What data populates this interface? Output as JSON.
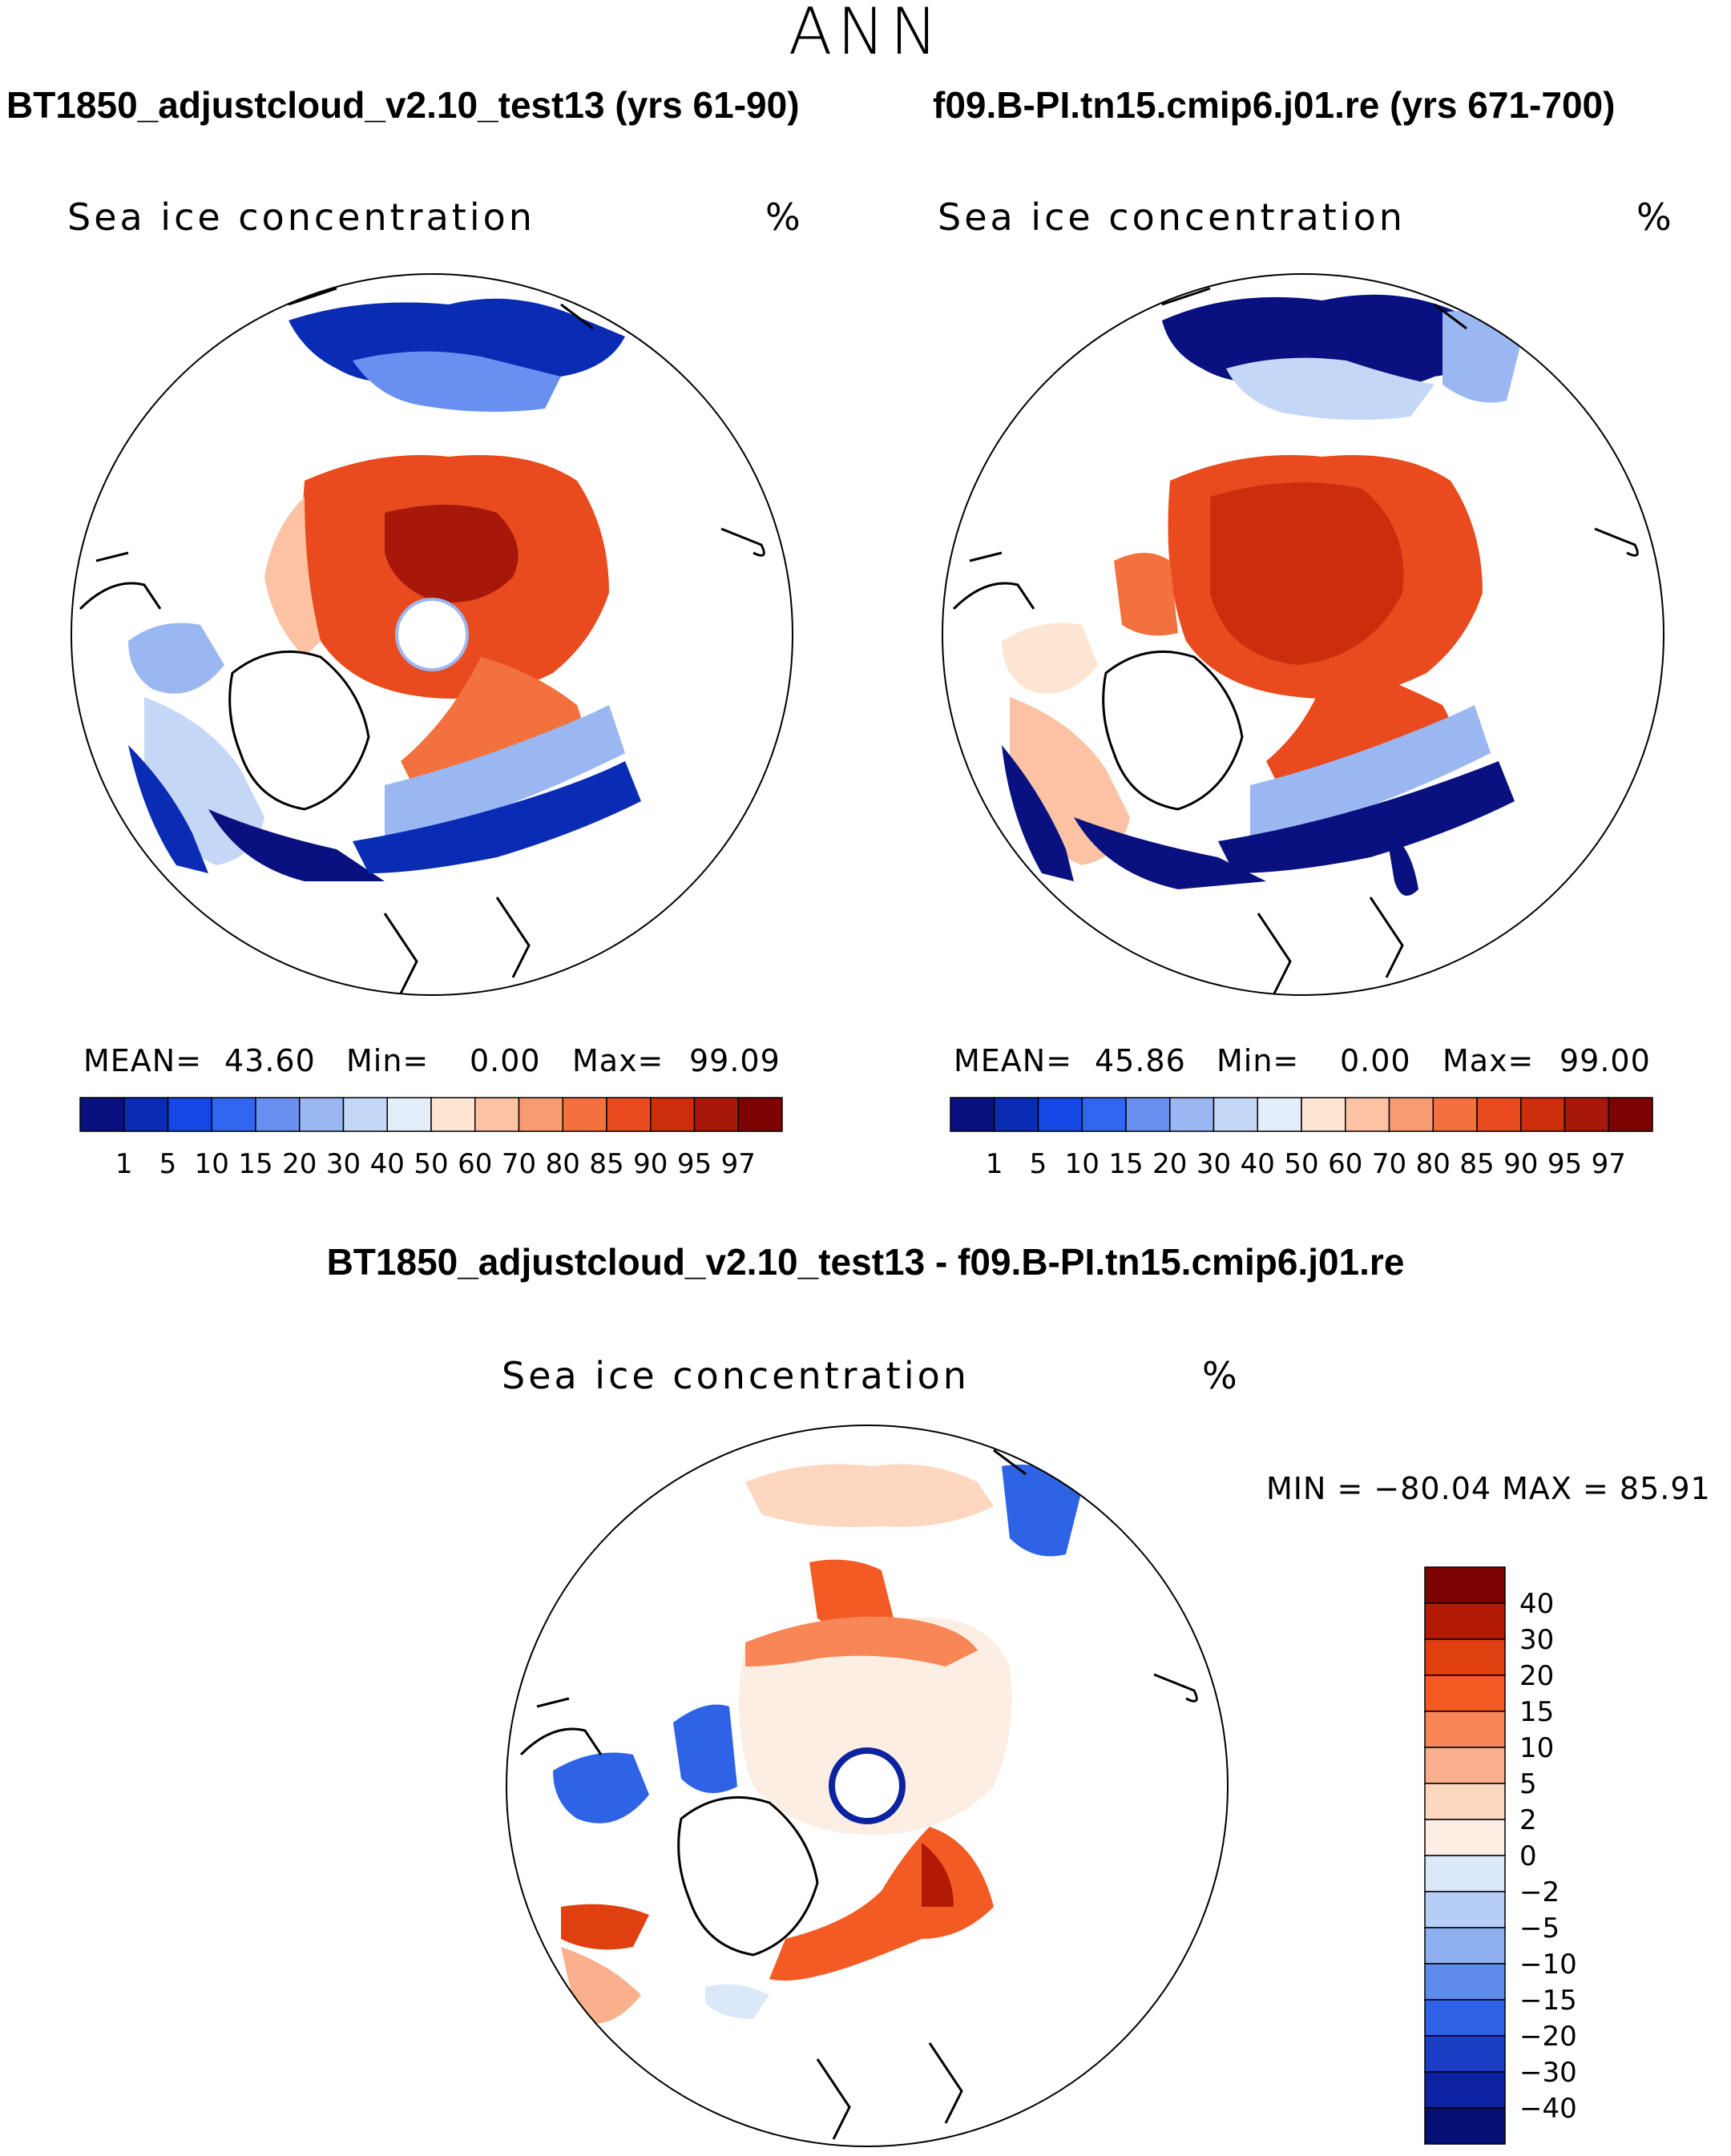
{
  "season": "ANN",
  "panels": [
    {
      "case_title": "BT1850_adjustcloud_v2.10_test13 (yrs 61-90)",
      "variable": "Sea ice concentration",
      "units": "%",
      "mean_label": "MEAN=",
      "mean_value": "43.60",
      "min_label": "Min=",
      "min_value": "0.00",
      "max_label": "Max=",
      "max_value": "99.09"
    },
    {
      "case_title": "f09.B-PI.tn15.cmip6.j01.re (yrs 671-700)",
      "variable": "Sea ice concentration",
      "units": "%",
      "mean_label": "MEAN=",
      "mean_value": "45.86",
      "min_label": "Min=",
      "min_value": "0.00",
      "max_label": "Max=",
      "max_value": "99.00"
    }
  ],
  "difference": {
    "title": "BT1850_adjustcloud_v2.10_test13 - f09.B-PI.tn15.cmip6.j01.re",
    "variable": "Sea ice concentration",
    "units": "%",
    "min_max_text": "MIN = −80.04 MAX =   85.91"
  },
  "chart_data": {
    "type": "heatmap",
    "projection": "north polar stereographic",
    "title": "ANN",
    "variable": "Sea ice concentration (%)",
    "colorbar_levels": [
      "1",
      "5",
      "10",
      "15",
      "20",
      "30",
      "40",
      "50",
      "60",
      "70",
      "80",
      "85",
      "90",
      "95",
      "97"
    ],
    "colorbar_colors": [
      "#08117f",
      "#0a2bb4",
      "#1447e6",
      "#3166f0",
      "#6990f0",
      "#9ab7f2",
      "#c4d7f6",
      "#e4eefb",
      "#fde5d3",
      "#fbc2a4",
      "#f89a72",
      "#f3713f",
      "#e94b1f",
      "#cc2d0c",
      "#a7180b",
      "#7d0303"
    ],
    "diff_levels": [
      "40",
      "30",
      "20",
      "15",
      "10",
      "5",
      "2",
      "0",
      "−2",
      "−5",
      "−10",
      "−15",
      "−20",
      "−30",
      "−40"
    ],
    "diff_colors": [
      "#7d0303",
      "#b31a06",
      "#e0400f",
      "#f35a24",
      "#f88657",
      "#fab08c",
      "#fdd7c0",
      "#fdeee3",
      "#dbe8fa",
      "#b6cef6",
      "#8eb0f0",
      "#5f8cec",
      "#2f63e6",
      "#1a3fc4",
      "#0c22a0",
      "#051074"
    ],
    "panel_stats": [
      {
        "case": "BT1850_adjustcloud_v2.10_test13",
        "years": "61-90",
        "mean": 43.6,
        "min": 0.0,
        "max": 99.09
      },
      {
        "case": "f09.B-PI.tn15.cmip6.j01.re",
        "years": "671-700",
        "mean": 45.86,
        "min": 0.0,
        "max": 99.0
      }
    ],
    "difference_stats": {
      "min": -80.04,
      "max": 85.91
    }
  }
}
